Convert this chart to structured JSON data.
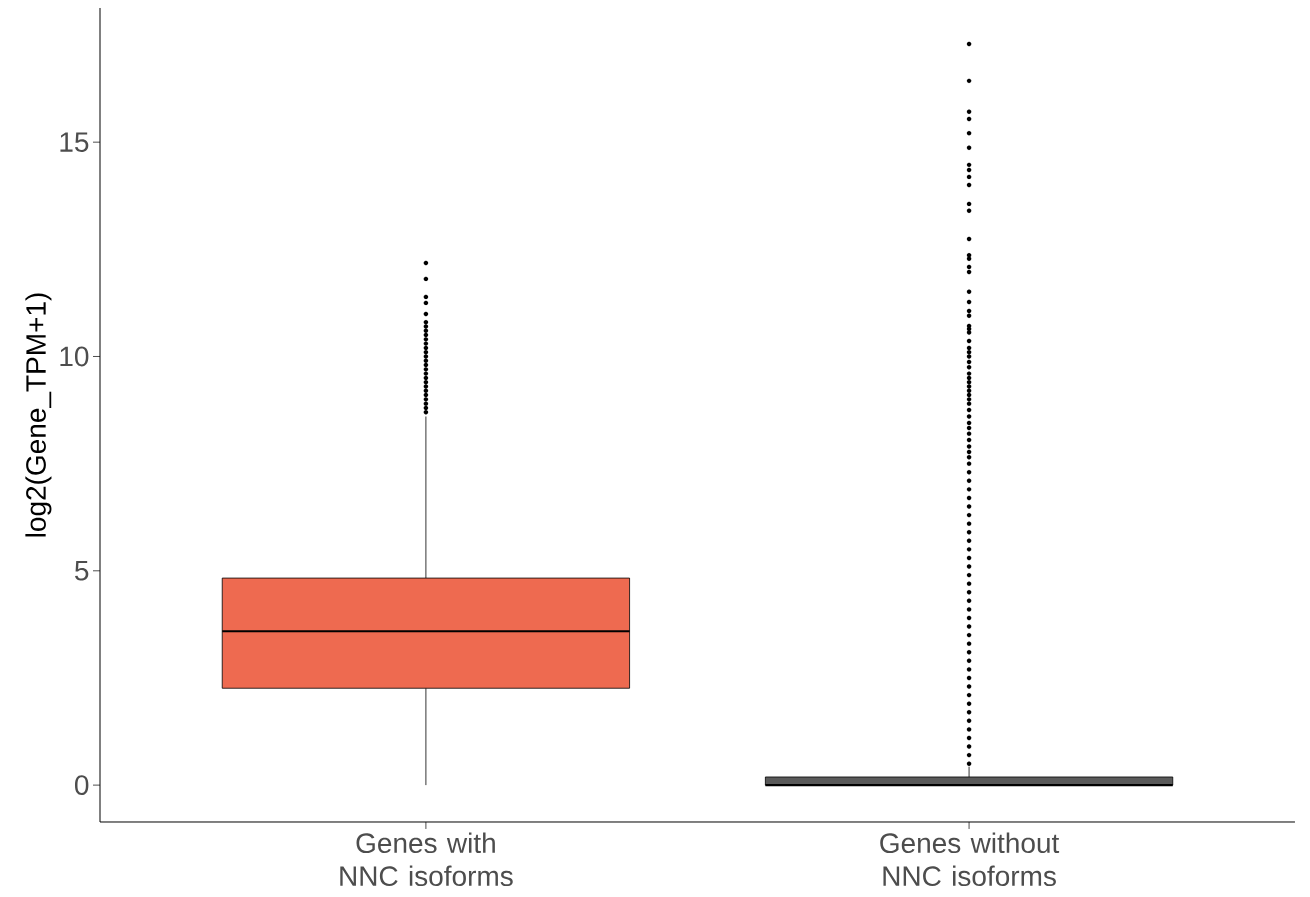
{
  "chart_data": {
    "type": "box",
    "ylabel": "log2(Gene_TPM+1)",
    "categories": [
      "Genes with NNC isoforms",
      "Genes without NNC isoforms"
    ],
    "colors": [
      "#ee6a50",
      "#595959"
    ],
    "boxes": [
      {
        "low": 0,
        "q1": 2.26,
        "median": 3.59,
        "q3": 4.83,
        "high": 8.6,
        "outliers": [
          8.7,
          8.8,
          8.9,
          9.0,
          9.1,
          9.2,
          9.3,
          9.4,
          9.5,
          9.6,
          9.7,
          9.8,
          9.9,
          10.0,
          10.1,
          10.2,
          10.3,
          10.4,
          10.5,
          10.6,
          10.7,
          10.8,
          10.99,
          11.25,
          11.39,
          11.81,
          12.18
        ]
      },
      {
        "low": 0,
        "q1": 0,
        "median": 0,
        "q3": 0.19,
        "high": 0.43,
        "outliers": [
          0.5,
          0.7,
          0.9,
          1.1,
          1.3,
          1.5,
          1.7,
          1.9,
          2.1,
          2.3,
          2.5,
          2.7,
          2.9,
          3.1,
          3.3,
          3.5,
          3.7,
          3.9,
          4.1,
          4.3,
          4.5,
          4.7,
          4.9,
          5.1,
          5.3,
          5.5,
          5.7,
          5.9,
          6.1,
          6.3,
          6.5,
          6.7,
          6.9,
          7.1,
          7.3,
          7.5,
          7.65,
          7.77,
          7.9,
          8.05,
          8.2,
          8.33,
          8.45,
          8.6,
          8.75,
          8.9,
          9.0,
          9.1,
          9.2,
          9.3,
          9.4,
          9.5,
          9.6,
          9.75,
          9.87,
          10.0,
          10.1,
          10.2,
          10.36,
          10.56,
          10.64,
          10.71,
          10.95,
          11.06,
          11.27,
          11.51,
          11.97,
          12.09,
          12.28,
          12.36,
          12.74,
          13.4,
          13.56,
          14.0,
          14.19,
          14.35,
          14.47,
          14.87,
          15.21,
          15.54,
          15.71,
          16.43,
          17.29
        ]
      }
    ],
    "ylim": [
      -0.86,
      18.13
    ],
    "yticks": [
      0,
      5,
      10,
      15
    ]
  }
}
